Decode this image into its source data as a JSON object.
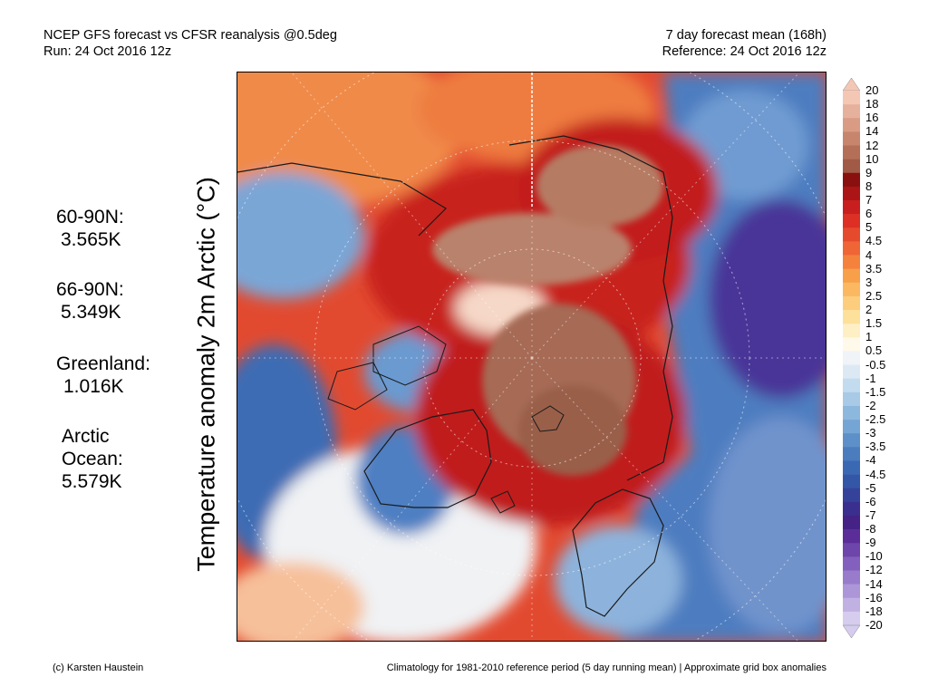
{
  "header": {
    "left_line1": "NCEP GFS forecast vs CFSR reanalysis @0.5deg",
    "left_line2": "Run: 24 Oct 2016 12z",
    "right_line1": "7 day forecast mean (168h)",
    "right_line2": "Reference: 24 Oct 2016 12z"
  },
  "stats": [
    {
      "label": "60-90N:",
      "value": "3.565K"
    },
    {
      "label": "66-90N:",
      "value": "5.349K"
    },
    {
      "label": "Greenland:",
      "value": "1.016K"
    },
    {
      "label": "Arctic",
      "label2": "Ocean:",
      "value": "5.579K"
    }
  ],
  "y_axis_label": "Temperature anomaly 2m Arctic (°C)",
  "colorbar": {
    "labels": [
      "20",
      "18",
      "16",
      "14",
      "12",
      "10",
      "9",
      "8",
      "7",
      "6",
      "5",
      "4.5",
      "4",
      "3.5",
      "3",
      "2.5",
      "2",
      "1.5",
      "1",
      "0.5",
      "-0.5",
      "-1",
      "-1.5",
      "-2",
      "-2.5",
      "-3",
      "-3.5",
      "-4",
      "-4.5",
      "-5",
      "-6",
      "-7",
      "-8",
      "-9",
      "-10",
      "-12",
      "-14",
      "-16",
      "-18",
      "-20"
    ],
    "colors": [
      "#f4c7b5",
      "#e6b19c",
      "#d99b84",
      "#c8856d",
      "#b56f58",
      "#a05a45",
      "#8a1010",
      "#ab1515",
      "#c81e1e",
      "#dd2f24",
      "#e64a2c",
      "#ef6535",
      "#f4823d",
      "#f89f4a",
      "#fbb861",
      "#fccd7c",
      "#fde09a",
      "#feefc4",
      "#fff9ea",
      "#f0f3f7",
      "#dce9f4",
      "#c3dbee",
      "#a8cae6",
      "#8db8de",
      "#74a5d4",
      "#5d90c9",
      "#4a7cbe",
      "#3b68b2",
      "#3456a6",
      "#35429a",
      "#3a2f8e",
      "#452285",
      "#5a2d98",
      "#6e45aa",
      "#8360bd",
      "#987bcb",
      "#ac96d8",
      "#c1b1e3",
      "#d5ccee"
    ]
  },
  "footer": {
    "left": "(c) Karsten Haustein",
    "right": "Climatology for 1981-2010 reference period (5 day running mean) | Approximate grid box anomalies"
  }
}
